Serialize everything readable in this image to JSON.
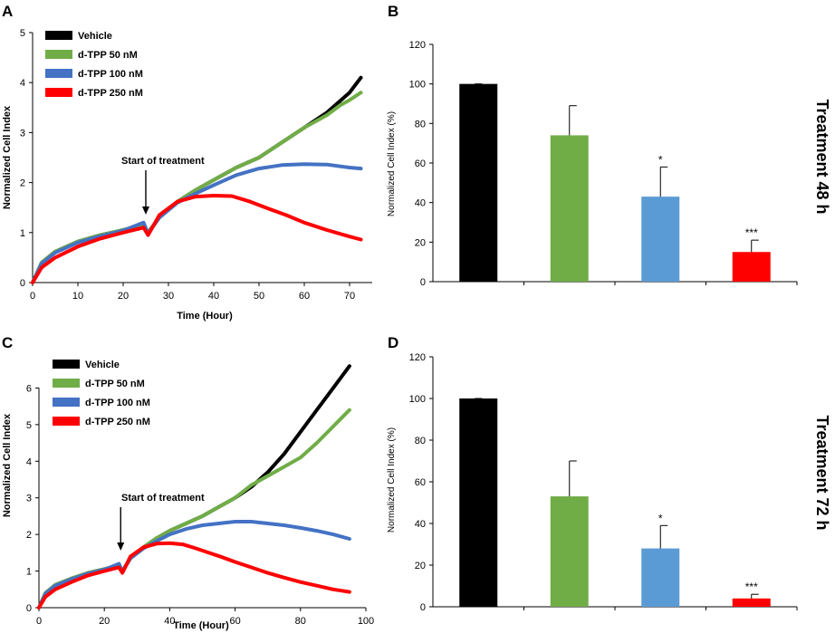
{
  "colors": {
    "vehicle": "#000000",
    "tpp50": "#70ad47",
    "tpp100": "#4472c4",
    "tpp250": "#ff0000",
    "bar100": "#5b9bd5"
  },
  "chart_data": [
    {
      "panel": "A",
      "type": "line",
      "xlabel": "Time  (Hour)",
      "ylabel": "Normalized Cell Index",
      "xlim": [
        0,
        75
      ],
      "ylim": [
        0,
        5
      ],
      "xticks": [
        0,
        10,
        20,
        30,
        40,
        50,
        60,
        70
      ],
      "yticks": [
        0,
        1,
        2,
        3,
        4,
        5
      ],
      "annotation": {
        "text": "Start of treatment",
        "x": 25
      },
      "series": [
        {
          "name": "Vehicle",
          "color": "#000000",
          "x": [
            0,
            2,
            5,
            10,
            15,
            20,
            24.5,
            25.5,
            28,
            32,
            36,
            40,
            45,
            50,
            55,
            60,
            65,
            70,
            72.5
          ],
          "y": [
            0,
            0.4,
            0.62,
            0.82,
            0.95,
            1.05,
            1.15,
            1.0,
            1.3,
            1.62,
            1.85,
            2.05,
            2.3,
            2.5,
            2.8,
            3.1,
            3.4,
            3.8,
            4.1
          ]
        },
        {
          "name": "d-TPP 50 nM",
          "color": "#70ad47",
          "x": [
            0,
            2,
            5,
            10,
            15,
            20,
            24.5,
            25.5,
            28,
            32,
            36,
            40,
            45,
            50,
            55,
            60,
            65,
            68,
            70,
            72.5
          ],
          "y": [
            0,
            0.4,
            0.62,
            0.82,
            0.95,
            1.05,
            1.15,
            1.0,
            1.3,
            1.62,
            1.85,
            2.05,
            2.3,
            2.5,
            2.8,
            3.1,
            3.35,
            3.55,
            3.65,
            3.8
          ]
        },
        {
          "name": "d-TPP 100 nM",
          "color": "#4472c4",
          "x": [
            0,
            2,
            5,
            10,
            15,
            20,
            24.5,
            25.5,
            28,
            32,
            36,
            40,
            45,
            50,
            55,
            60,
            65,
            70,
            72.5
          ],
          "y": [
            0,
            0.38,
            0.6,
            0.8,
            0.93,
            1.04,
            1.2,
            0.98,
            1.3,
            1.6,
            1.78,
            1.95,
            2.15,
            2.28,
            2.35,
            2.37,
            2.36,
            2.3,
            2.28
          ]
        },
        {
          "name": "d-TPP 250 nM",
          "color": "#ff0000",
          "x": [
            0,
            2,
            5,
            10,
            15,
            20,
            24.5,
            25.5,
            28,
            32,
            36,
            40,
            44,
            48,
            52,
            56,
            60,
            65,
            70,
            72.5
          ],
          "y": [
            0,
            0.3,
            0.5,
            0.72,
            0.88,
            1.0,
            1.1,
            0.95,
            1.35,
            1.62,
            1.72,
            1.74,
            1.73,
            1.62,
            1.48,
            1.35,
            1.2,
            1.05,
            0.92,
            0.86
          ]
        }
      ]
    },
    {
      "panel": "B",
      "type": "bar",
      "side_label": "Treatment 48 h",
      "ylabel": "Normalized Cell Index (%)",
      "ylim": [
        0,
        120
      ],
      "yticks": [
        0,
        20,
        40,
        60,
        80,
        100,
        120
      ],
      "categories": [
        "Vehicle",
        "d-TPP 50 nM",
        "d-TPP 100 nM",
        "d-TPP 250 nM"
      ],
      "values": [
        100,
        74,
        43,
        15
      ],
      "errors": [
        0,
        15,
        15,
        6
      ],
      "colors": [
        "#000000",
        "#70ad47",
        "#5b9bd5",
        "#ff0000"
      ],
      "significance": [
        "",
        "",
        "*",
        "***"
      ]
    },
    {
      "panel": "C",
      "type": "line",
      "xlabel": "Time (Hour)",
      "ylabel": "Normalized Cell Index",
      "xlim": [
        0,
        100
      ],
      "ylim": [
        0,
        7
      ],
      "xticks": [
        0,
        20,
        40,
        60,
        80,
        100
      ],
      "yticks": [
        0,
        1,
        2,
        3,
        4,
        5,
        6
      ],
      "annotation": {
        "text": "Start of treatment",
        "x": 25
      },
      "series": [
        {
          "name": "Vehicle",
          "color": "#000000",
          "x": [
            0,
            2,
            5,
            10,
            15,
            20,
            24.5,
            25.5,
            28,
            32,
            36,
            40,
            45,
            50,
            55,
            60,
            65,
            70,
            75,
            80,
            85,
            90,
            95
          ],
          "y": [
            0,
            0.4,
            0.62,
            0.8,
            0.95,
            1.05,
            1.15,
            1.0,
            1.35,
            1.65,
            1.9,
            2.1,
            2.3,
            2.5,
            2.75,
            3.0,
            3.3,
            3.7,
            4.2,
            4.8,
            5.4,
            6.0,
            6.6
          ]
        },
        {
          "name": "d-TPP 50 nM",
          "color": "#70ad47",
          "x": [
            0,
            2,
            5,
            10,
            15,
            20,
            24.5,
            25.5,
            28,
            32,
            36,
            40,
            45,
            50,
            55,
            60,
            65,
            70,
            75,
            80,
            85,
            90,
            95
          ],
          "y": [
            0,
            0.4,
            0.62,
            0.8,
            0.95,
            1.05,
            1.15,
            1.0,
            1.35,
            1.65,
            1.9,
            2.1,
            2.3,
            2.5,
            2.75,
            3.0,
            3.35,
            3.6,
            3.85,
            4.1,
            4.5,
            4.95,
            5.4
          ]
        },
        {
          "name": "d-TPP 100 nM",
          "color": "#4472c4",
          "x": [
            0,
            2,
            5,
            10,
            15,
            20,
            24.5,
            25.5,
            28,
            32,
            36,
            40,
            45,
            50,
            55,
            60,
            65,
            70,
            75,
            80,
            85,
            90,
            95
          ],
          "y": [
            0,
            0.38,
            0.6,
            0.78,
            0.93,
            1.04,
            1.2,
            0.98,
            1.35,
            1.62,
            1.82,
            2.0,
            2.15,
            2.25,
            2.3,
            2.35,
            2.35,
            2.3,
            2.25,
            2.18,
            2.1,
            2.0,
            1.88
          ]
        },
        {
          "name": "d-TPP 250 nM",
          "color": "#ff0000",
          "x": [
            0,
            2,
            5,
            10,
            15,
            20,
            24.5,
            25.5,
            28,
            32,
            36,
            40,
            44,
            48,
            52,
            56,
            60,
            65,
            70,
            75,
            80,
            85,
            90,
            95
          ],
          "y": [
            0,
            0.3,
            0.5,
            0.7,
            0.88,
            1.0,
            1.1,
            0.95,
            1.4,
            1.65,
            1.75,
            1.76,
            1.73,
            1.62,
            1.5,
            1.38,
            1.25,
            1.1,
            0.95,
            0.82,
            0.7,
            0.6,
            0.5,
            0.43
          ]
        }
      ]
    },
    {
      "panel": "D",
      "type": "bar",
      "side_label": "Treatment 72 h",
      "ylabel": "Normalized Cell Index (%)",
      "ylim": [
        0,
        120
      ],
      "yticks": [
        0,
        20,
        40,
        60,
        80,
        100,
        120
      ],
      "categories": [
        "Vehicle",
        "d-TPP 50 nM",
        "d-TPP 100 nM",
        "d-TPP 250 nM"
      ],
      "values": [
        100,
        53,
        28,
        4
      ],
      "errors": [
        0,
        17,
        11,
        2
      ],
      "colors": [
        "#000000",
        "#70ad47",
        "#5b9bd5",
        "#ff0000"
      ],
      "significance": [
        "",
        "",
        "*",
        "***"
      ]
    }
  ]
}
